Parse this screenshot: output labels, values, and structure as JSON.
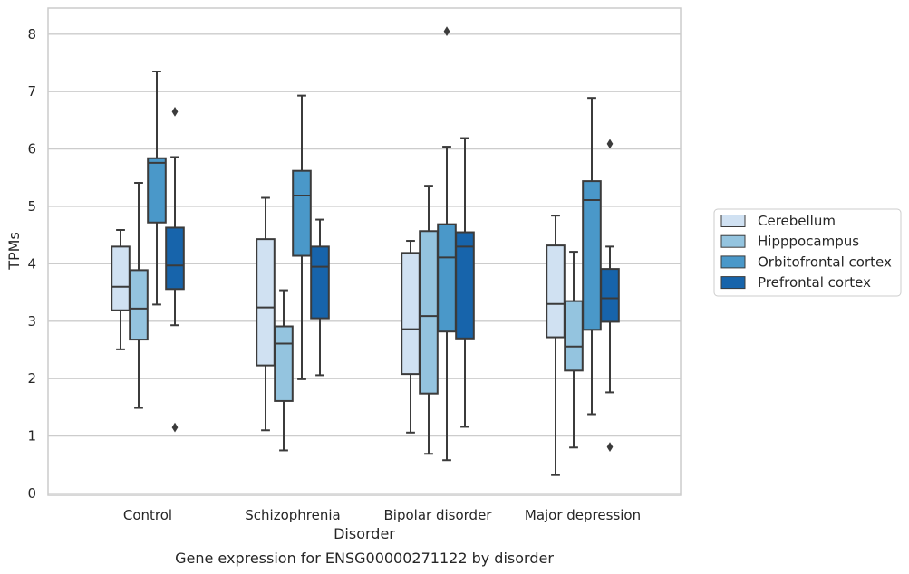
{
  "chart_data": {
    "type": "box",
    "title": "",
    "caption": "Gene expression for ENSG00000271122 by disorder",
    "xlabel": "Disorder",
    "ylabel": "TPMs",
    "ylim": [
      0,
      8.45
    ],
    "yticks": [
      "0",
      "1",
      "2",
      "3",
      "4",
      "5",
      "6",
      "7",
      "8"
    ],
    "grid": true,
    "legend_position": "right",
    "categories": [
      "Control",
      "Schizophrenia",
      "Bipolar disorder",
      "Major depression"
    ],
    "series": [
      {
        "name": "Cerebellum",
        "color": "#d0e1f2",
        "boxes": [
          {
            "whislo": 2.51,
            "q1": 3.19,
            "med": 3.6,
            "q3": 4.3,
            "whishi": 4.59,
            "fliers": []
          },
          {
            "whislo": 1.1,
            "q1": 2.23,
            "med": 3.24,
            "q3": 4.43,
            "whishi": 5.15,
            "fliers": []
          },
          {
            "whislo": 1.06,
            "q1": 2.08,
            "med": 2.86,
            "q3": 4.19,
            "whishi": 4.4,
            "fliers": []
          },
          {
            "whislo": 0.32,
            "q1": 2.72,
            "med": 3.3,
            "q3": 4.32,
            "whishi": 4.84,
            "fliers": []
          }
        ]
      },
      {
        "name": "Hipppocampus",
        "color": "#94c4df",
        "boxes": [
          {
            "whislo": 1.49,
            "q1": 2.68,
            "med": 3.22,
            "q3": 3.89,
            "whishi": 5.41,
            "fliers": []
          },
          {
            "whislo": 0.75,
            "q1": 1.61,
            "med": 2.61,
            "q3": 2.91,
            "whishi": 3.54,
            "fliers": []
          },
          {
            "whislo": 0.69,
            "q1": 1.74,
            "med": 3.09,
            "q3": 4.57,
            "whishi": 5.36,
            "fliers": []
          },
          {
            "whislo": 0.8,
            "q1": 2.14,
            "med": 2.56,
            "q3": 3.35,
            "whishi": 4.21,
            "fliers": []
          }
        ]
      },
      {
        "name": "Orbitofrontal cortex",
        "color": "#4a98c9",
        "boxes": [
          {
            "whislo": 3.29,
            "q1": 4.72,
            "med": 5.76,
            "q3": 5.84,
            "whishi": 7.35,
            "fliers": []
          },
          {
            "whislo": 1.99,
            "q1": 4.14,
            "med": 5.19,
            "q3": 5.62,
            "whishi": 6.93,
            "fliers": []
          },
          {
            "whislo": 0.58,
            "q1": 2.82,
            "med": 4.11,
            "q3": 4.69,
            "whishi": 6.04,
            "fliers": [
              8.05
            ]
          },
          {
            "whislo": 1.38,
            "q1": 2.85,
            "med": 5.11,
            "q3": 5.44,
            "whishi": 6.89,
            "fliers": []
          }
        ]
      },
      {
        "name": "Prefrontal cortex",
        "color": "#1764ab",
        "boxes": [
          {
            "whislo": 2.93,
            "q1": 3.56,
            "med": 3.97,
            "q3": 4.63,
            "whishi": 5.86,
            "fliers": [
              6.65,
              1.15
            ]
          },
          {
            "whislo": 2.06,
            "q1": 3.05,
            "med": 3.95,
            "q3": 4.3,
            "whishi": 4.77,
            "fliers": []
          },
          {
            "whislo": 1.16,
            "q1": 2.7,
            "med": 4.3,
            "q3": 4.55,
            "whishi": 6.19,
            "fliers": []
          },
          {
            "whislo": 1.76,
            "q1": 2.99,
            "med": 3.4,
            "q3": 3.91,
            "whishi": 4.3,
            "fliers": [
              6.09,
              0.81
            ]
          }
        ]
      }
    ]
  }
}
